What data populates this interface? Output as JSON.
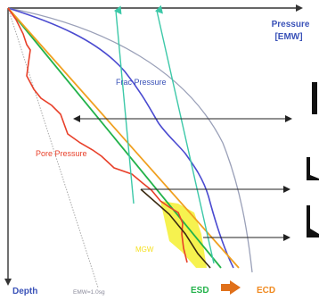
{
  "labels": {
    "pressure_axis_line1": "Pressure",
    "pressure_axis_line2": "[EMW]",
    "frac_pressure": "Frac Pressure",
    "pore_pressure": "Pore Pressure",
    "depth_axis": "Depth",
    "emw_ref": "EMW=1.0sg",
    "yellow_zone": "MGW",
    "esd": "ESD",
    "ecd": "ECD"
  },
  "colors": {
    "axis": "#333333",
    "frac_line": "#4a4ad0",
    "overburden_line": "#9aa0b8",
    "pore_line": "#e8402a",
    "mud_line_green": "#22b24a",
    "ecd_line_orange": "#f0a020",
    "teal_arrows": "#3cc8a8",
    "yellow_zone": "#f5f030",
    "dark_brown": "#3a2a10",
    "label_blue": "#3a52b8",
    "label_red": "#e8402a",
    "label_green": "#22b24a",
    "label_orange": "#f08a20",
    "arrow_orange": "#e0701a"
  },
  "icons": {
    "side_shapes": [
      "right-edge-bracket-icon",
      "step-profile-icon",
      "step-profile-icon"
    ]
  }
}
